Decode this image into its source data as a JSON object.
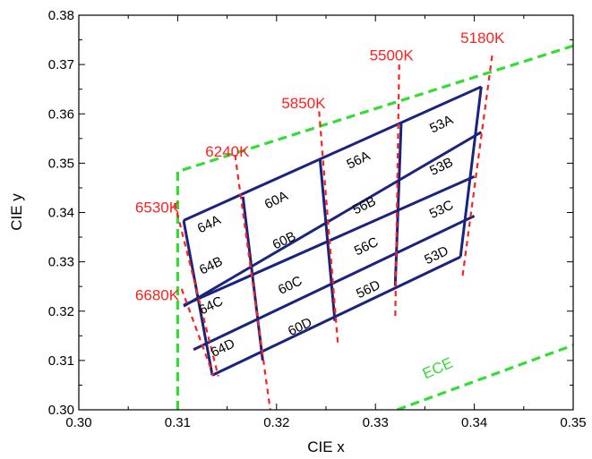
{
  "chart_data": {
    "type": "line",
    "xlabel": "CIE x",
    "ylabel": "CIE y",
    "xlim": [
      0.3,
      0.35
    ],
    "ylim": [
      0.3,
      0.38
    ],
    "x_ticks": [
      "0.30",
      "0.31",
      "0.32",
      "0.33",
      "0.34",
      "0.35"
    ],
    "y_ticks": [
      "0.30",
      "0.31",
      "0.32",
      "0.33",
      "0.34",
      "0.35",
      "0.36",
      "0.37",
      "0.38"
    ],
    "colors": {
      "grid_lines": "#1a237e",
      "cct_lines": "#ff2020",
      "ece_boundary": "#33dd33"
    },
    "ece_boundary": {
      "name": "ECE",
      "upper": [
        [
          0.31,
          0.3
        ],
        [
          0.31,
          0.3483
        ],
        [
          0.35,
          0.3738
        ]
      ],
      "lower": [
        [
          0.3322,
          0.3
        ],
        [
          0.35,
          0.3131
        ]
      ],
      "label_pos": [
        0.3365,
        0.3075
      ]
    },
    "cct_lines": [
      {
        "label": "6680K",
        "points": [
          [
            0.3104,
            0.3245
          ],
          [
            0.3136,
            0.307
          ]
        ],
        "label_pos": [
          0.3057,
          0.3222
        ]
      },
      {
        "label": "6530K",
        "points": [
          [
            0.3097,
            0.3419
          ],
          [
            0.3141,
            0.3068
          ]
        ],
        "label_pos": [
          0.3057,
          0.34
        ]
      },
      {
        "label": "6240K",
        "points": [
          [
            0.3158,
            0.3517
          ],
          [
            0.3196,
            0.2965
          ]
        ],
        "label_pos": [
          0.3128,
          0.3513
        ]
      },
      {
        "label": "5850K",
        "points": [
          [
            0.3243,
            0.3605
          ],
          [
            0.3262,
            0.3135
          ]
        ],
        "label_pos": [
          0.3205,
          0.3611
        ]
      },
      {
        "label": "5500K",
        "points": [
          [
            0.3324,
            0.37
          ],
          [
            0.332,
            0.3183
          ]
        ],
        "label_pos": [
          0.3294,
          0.3708
        ]
      },
      {
        "label": "5180K",
        "points": [
          [
            0.3418,
            0.3718
          ],
          [
            0.3388,
            0.327
          ]
        ],
        "label_pos": [
          0.3386,
          0.3744
        ]
      }
    ],
    "grid_rows": [
      {
        "left": [
          0.3106,
          0.3384
        ],
        "right": [
          0.3407,
          0.3655
        ]
      },
      {
        "left": [
          0.3106,
          0.321
        ],
        "right": [
          0.3407,
          0.3563
        ]
      },
      {
        "left": [
          0.3106,
          0.3212
        ],
        "right": [
          0.34,
          0.3473
        ]
      },
      {
        "left": [
          0.3116,
          0.3122
        ],
        "right": [
          0.34,
          0.3393
        ]
      },
      {
        "left": [
          0.3135,
          0.307
        ],
        "right": [
          0.3386,
          0.331
        ]
      }
    ],
    "grid_columns": [
      {
        "top": [
          0.3106,
          0.3384
        ],
        "bottom": [
          0.3135,
          0.307
        ]
      },
      {
        "top": [
          0.3166,
          0.3432
        ],
        "bottom": [
          0.3186,
          0.31
        ]
      },
      {
        "top": [
          0.3244,
          0.3507
        ],
        "bottom": [
          0.3259,
          0.318
        ]
      },
      {
        "top": [
          0.3326,
          0.358
        ],
        "bottom": [
          0.332,
          0.3251
        ]
      },
      {
        "top": [
          0.3407,
          0.3655
        ],
        "bottom": [
          0.3386,
          0.331
        ]
      }
    ],
    "bins": [
      {
        "label": "64A",
        "pos": [
          0.3132,
          0.3375
        ]
      },
      {
        "label": "64B",
        "pos": [
          0.3134,
          0.3291
        ]
      },
      {
        "label": "64C",
        "pos": [
          0.3134,
          0.321
        ]
      },
      {
        "label": "64D",
        "pos": [
          0.3146,
          0.3124
        ]
      },
      {
        "label": "60A",
        "pos": [
          0.32,
          0.3424
        ]
      },
      {
        "label": "60B",
        "pos": [
          0.3208,
          0.3342
        ]
      },
      {
        "label": "60C",
        "pos": [
          0.3214,
          0.3251
        ]
      },
      {
        "label": "60D",
        "pos": [
          0.3224,
          0.3167
        ]
      },
      {
        "label": "56A",
        "pos": [
          0.3283,
          0.3505
        ]
      },
      {
        "label": "56B",
        "pos": [
          0.3289,
          0.3413
        ]
      },
      {
        "label": "56C",
        "pos": [
          0.3291,
          0.333
        ]
      },
      {
        "label": "56D",
        "pos": [
          0.3293,
          0.3243
        ]
      },
      {
        "label": "53A",
        "pos": [
          0.3367,
          0.3578
        ]
      },
      {
        "label": "53B",
        "pos": [
          0.3367,
          0.3492
        ]
      },
      {
        "label": "53C",
        "pos": [
          0.3367,
          0.3405
        ]
      },
      {
        "label": "53D",
        "pos": [
          0.3362,
          0.3312
        ]
      }
    ]
  }
}
